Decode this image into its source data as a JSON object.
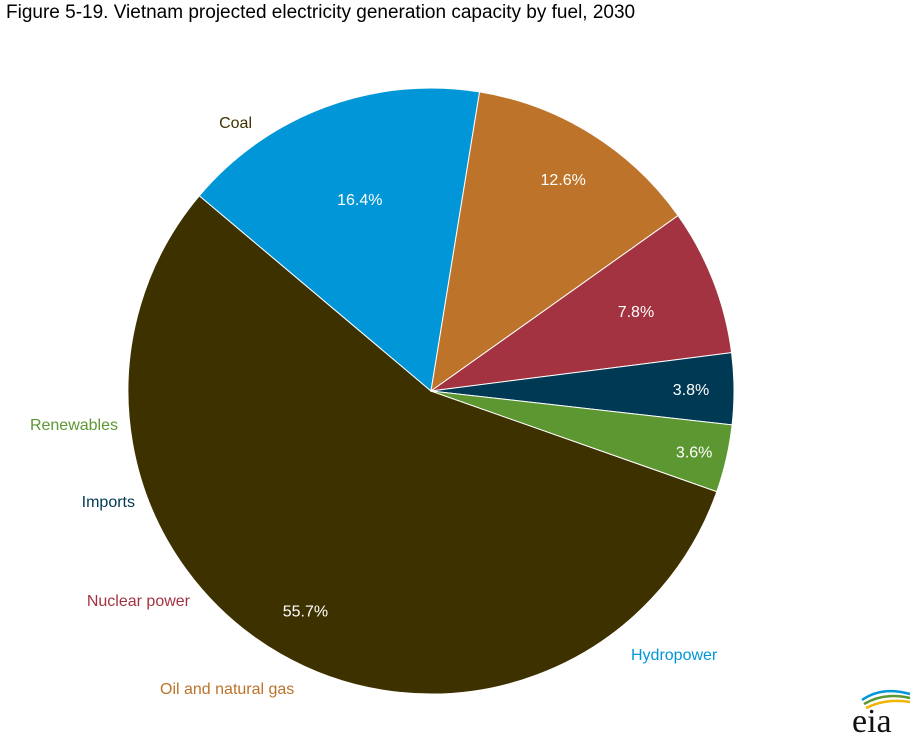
{
  "title": "Figure 5-19. Vietnam projected electricity generation capacity by fuel, 2030",
  "chart_data": {
    "type": "pie",
    "title": "Figure 5-19. Vietnam projected electricity generation capacity by fuel, 2030",
    "unit": "%",
    "slices": [
      {
        "label": "Coal",
        "value": 55.7,
        "value_label": "55.7%",
        "color": "#3e3100",
        "label_color": "#3e3100"
      },
      {
        "label": "Hydropower",
        "value": 16.4,
        "value_label": "16.4%",
        "color": "#0096d7",
        "label_color": "#0096d7"
      },
      {
        "label": "Oil and natural gas",
        "value": 12.6,
        "value_label": "12.6%",
        "color": "#bd732a",
        "label_color": "#bd732a"
      },
      {
        "label": "Nuclear power",
        "value": 7.8,
        "value_label": "7.8%",
        "color": "#a33340",
        "label_color": "#a33340"
      },
      {
        "label": "Imports",
        "value": 3.8,
        "value_label": "3.8%",
        "color": "#003953",
        "label_color": "#003953"
      },
      {
        "label": "Renewables",
        "value": 3.6,
        "value_label": "3.6%",
        "color": "#5d9732",
        "label_color": "#5d9732"
      }
    ]
  },
  "logo": {
    "text": "eia"
  }
}
